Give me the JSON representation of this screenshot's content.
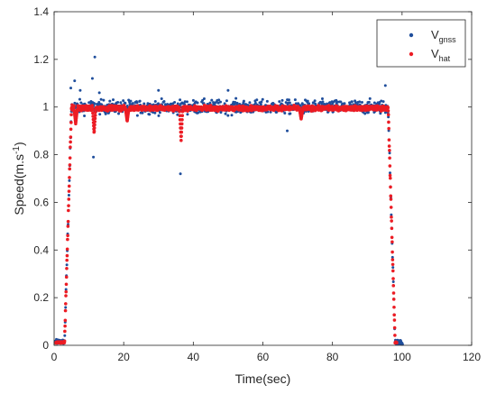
{
  "chart_data": {
    "type": "scatter",
    "xlabel": "Time(sec)",
    "ylabel_main": "Speed(m.s",
    "ylabel_sup": "-1",
    "ylabel_close": ")",
    "xlim": [
      0,
      120
    ],
    "ylim": [
      0,
      1.4
    ],
    "xticks": [
      0,
      20,
      40,
      60,
      80,
      100,
      120
    ],
    "yticks": [
      0,
      0.2,
      0.4,
      0.6,
      0.8,
      1,
      1.2,
      1.4
    ],
    "xtick_labels": [
      "0",
      "20",
      "40",
      "60",
      "80",
      "100",
      "120"
    ],
    "ytick_labels": [
      "0",
      "0.2",
      "0.4",
      "0.6",
      "0.8",
      "1",
      "1.2",
      "1.4"
    ],
    "grid": false,
    "legend_position": "top-right",
    "series": [
      {
        "name_main": "V",
        "name_sub": "gnss",
        "color": "#1f4e9c",
        "description": "noisy GNSS speed samples: ~0 until t=3, ramp to ~1 by t=5, scattered around 1.0 (±0.06) until t=96, drop to 0 by t=98, ~0.01 until t=100",
        "outliers": [
          [
            4.8,
            1.08
          ],
          [
            5.9,
            1.11
          ],
          [
            11.0,
            1.12
          ],
          [
            11.7,
            1.21
          ],
          [
            11.3,
            0.79
          ],
          [
            36.3,
            0.72
          ],
          [
            7.5,
            1.07
          ],
          [
            13.0,
            1.06
          ],
          [
            95.2,
            1.09
          ],
          [
            30.0,
            1.07
          ],
          [
            50.0,
            1.07
          ],
          [
            67.0,
            0.9
          ]
        ]
      },
      {
        "name_main": "V",
        "name_sub": "hat",
        "color": "#ec1c24",
        "description": "estimated speed: smoother band around 0.98–1.01, dips to 0.89 at t≈11.5 and 0.86 at t≈36.5",
        "dips": [
          [
            11.5,
            0.89
          ],
          [
            36.5,
            0.86
          ],
          [
            6.2,
            0.93
          ],
          [
            21.0,
            0.94
          ],
          [
            71.0,
            0.95
          ]
        ]
      }
    ]
  }
}
